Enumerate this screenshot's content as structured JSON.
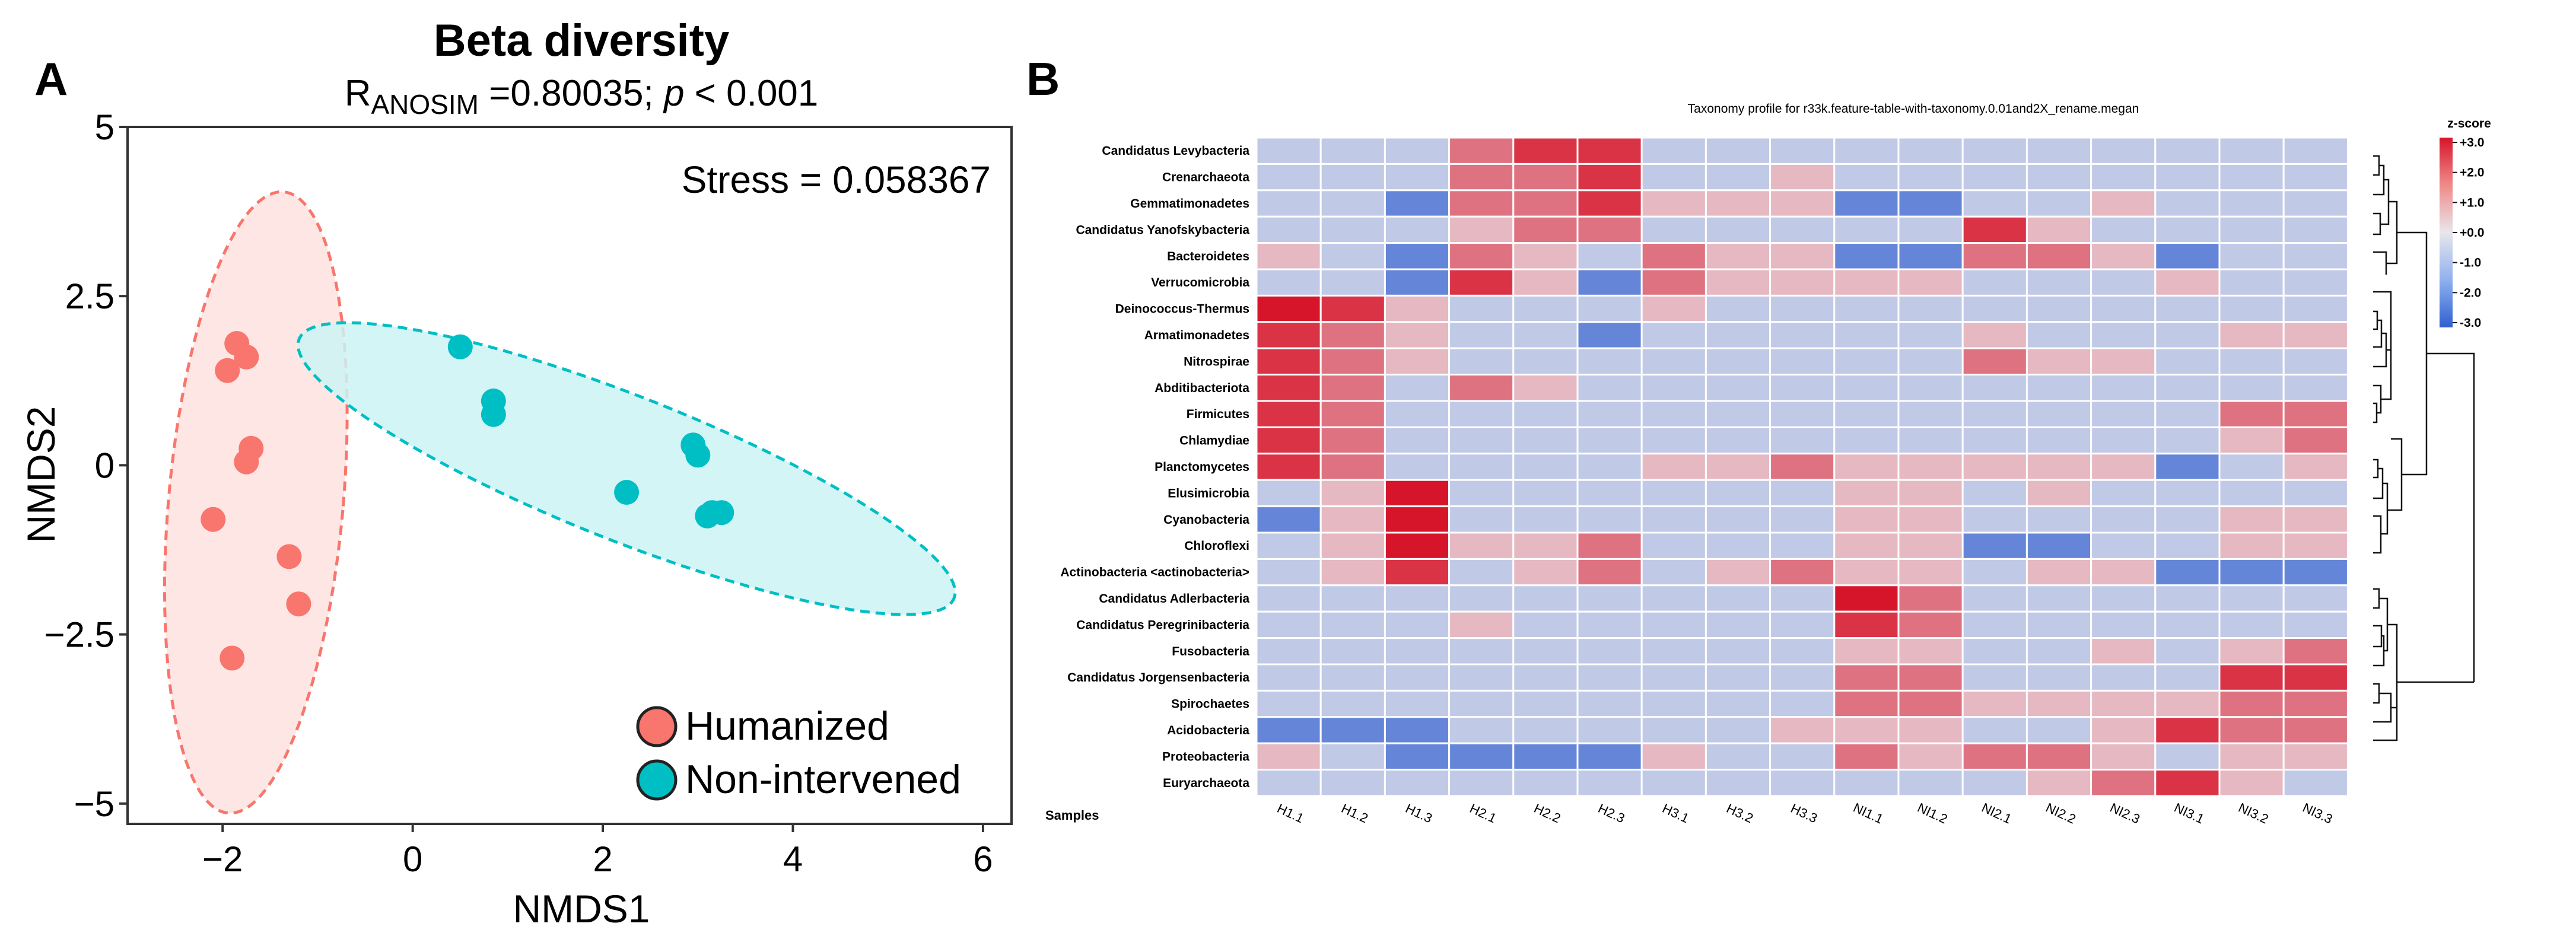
{
  "chart_data": [
    {
      "type": "scatter",
      "panel_label": "A",
      "title": "Beta diversity",
      "subtitle": {
        "r_symbol": "R",
        "r_subscript": "ANOSIM",
        "r_value": " =0.80035; ",
        "p_symbol": "p",
        "p_value": " < 0.001"
      },
      "annotation": "Stress = 0.058367",
      "xlabel": "NMDS1",
      "ylabel": "NMDS2",
      "xlim": [
        -3,
        6.3
      ],
      "ylim": [
        -5.3,
        5
      ],
      "xticks": [
        -2,
        0,
        2,
        4,
        6
      ],
      "xtick_labels": [
        "−2",
        "0",
        "2",
        "4",
        "6"
      ],
      "yticks": [
        5,
        2.5,
        0,
        -2.5,
        -5
      ],
      "ytick_labels": [
        "5",
        "2.5",
        "0",
        "−2.5",
        "−5"
      ],
      "legend_position": "bottom-right",
      "series": [
        {
          "name": "Humanized",
          "color": "#f8766d",
          "ellipse_fill": "#fde3e1",
          "points": [
            [
              -1.85,
              1.8
            ],
            [
              -1.75,
              1.6
            ],
            [
              -1.95,
              1.4
            ],
            [
              -1.7,
              0.25
            ],
            [
              -1.75,
              0.05
            ],
            [
              -2.1,
              -0.8
            ],
            [
              -1.3,
              -1.35
            ],
            [
              -1.2,
              -2.05
            ],
            [
              -1.9,
              -2.85
            ]
          ],
          "ellipse": {
            "cx": -1.65,
            "cy": -0.55,
            "rx": 0.92,
            "ry": 4.6,
            "angle_deg": -3.5
          }
        },
        {
          "name": "Non-intervened",
          "color": "#00bfc4",
          "ellipse_fill": "#cdf3f4",
          "points": [
            [
              0.5,
              1.75
            ],
            [
              0.85,
              0.95
            ],
            [
              0.85,
              0.75
            ],
            [
              2.95,
              0.3
            ],
            [
              3.0,
              0.15
            ],
            [
              2.25,
              -0.4
            ],
            [
              3.15,
              -0.7
            ],
            [
              3.25,
              -0.7
            ],
            [
              3.1,
              -0.75
            ]
          ],
          "ellipse": {
            "cx": 2.25,
            "cy": -0.05,
            "rx": 3.95,
            "ry": 1.0,
            "angle_deg": -30
          }
        }
      ]
    },
    {
      "type": "heatmap",
      "panel_label": "B",
      "title": "Taxonomy profile for r33k.feature-table-with-taxonomy.0.01and2X_rename.megan",
      "xlabel": "Samples",
      "rows": [
        "Candidatus Levybacteria",
        "Crenarchaeota",
        "Gemmatimonadetes",
        "Candidatus Yanofskybacteria",
        "Bacteroidetes",
        "Verrucomicrobia",
        "Deinococcus-Thermus",
        "Armatimonadetes",
        "Nitrospirae",
        "Abditibacteriota",
        "Firmicutes",
        "Chlamydiae",
        "Planctomycetes",
        "Elusimicrobia",
        "Cyanobacteria",
        "Chloroflexi",
        "Actinobacteria <actinobacteria>",
        "Candidatus Adlerbacteria",
        "Candidatus Peregrinibacteria",
        "Fusobacteria",
        "Candidatus Jorgensenbacteria",
        "Spirochaetes",
        "Acidobacteria",
        "Proteobacteria",
        "Euryarchaeota"
      ],
      "columns": [
        "H1.1",
        "H1.2",
        "H1.3",
        "H2.1",
        "H2.2",
        "H2.3",
        "H3.1",
        "H3.2",
        "H3.3",
        "NI1.1",
        "NI1.2",
        "NI2.1",
        "NI2.2",
        "NI2.3",
        "NI3.1",
        "NI3.2",
        "NI3.3"
      ],
      "values": [
        [
          -0.5,
          -0.5,
          -0.5,
          1.5,
          2.5,
          2.5,
          -0.5,
          -0.5,
          -0.5,
          -0.5,
          -0.5,
          -0.5,
          -0.5,
          -0.5,
          -0.5,
          -0.5,
          -0.5
        ],
        [
          -0.5,
          -0.5,
          -0.5,
          1.5,
          1.5,
          2.5,
          -0.5,
          -0.5,
          0.5,
          -0.5,
          -0.5,
          -0.5,
          -0.5,
          -0.5,
          -0.5,
          -0.5,
          -0.5
        ],
        [
          -0.5,
          -0.5,
          -2.0,
          1.5,
          1.5,
          2.5,
          0.5,
          0.5,
          0.5,
          -2.0,
          -2.0,
          -0.5,
          -0.5,
          0.5,
          -0.5,
          -0.5,
          -0.5
        ],
        [
          -0.5,
          -0.5,
          -0.5,
          0.5,
          1.5,
          1.5,
          -0.5,
          -0.5,
          -0.5,
          -0.5,
          -0.5,
          2.5,
          0.5,
          -0.5,
          -0.5,
          -0.5,
          -0.5
        ],
        [
          0.5,
          -0.5,
          -2.0,
          1.5,
          0.5,
          -0.5,
          1.5,
          0.5,
          0.5,
          -2.0,
          -2.0,
          1.5,
          1.5,
          0.5,
          -2.0,
          -0.5,
          -0.5
        ],
        [
          -0.5,
          -0.5,
          -2.0,
          2.5,
          0.5,
          -2.0,
          1.5,
          0.5,
          0.5,
          0.5,
          0.5,
          -0.5,
          -0.5,
          -0.5,
          0.5,
          -0.5,
          -0.5
        ],
        [
          3.0,
          2.5,
          0.5,
          -0.5,
          -0.5,
          -0.5,
          0.5,
          -0.5,
          -0.5,
          -0.5,
          -0.5,
          -0.5,
          -0.5,
          -0.5,
          -0.5,
          -0.5,
          -0.5
        ],
        [
          2.5,
          1.5,
          0.5,
          -0.5,
          -0.5,
          -2.0,
          -0.5,
          -0.5,
          -0.5,
          -0.5,
          -0.5,
          0.5,
          -0.5,
          -0.5,
          -0.5,
          0.5,
          0.5
        ],
        [
          2.5,
          1.5,
          0.5,
          -0.5,
          -0.5,
          -0.5,
          -0.5,
          -0.5,
          -0.5,
          -0.5,
          -0.5,
          1.5,
          0.5,
          0.5,
          -0.5,
          -0.5,
          -0.5
        ],
        [
          2.5,
          1.5,
          -0.5,
          1.5,
          0.5,
          -0.5,
          -0.5,
          -0.5,
          -0.5,
          -0.5,
          -0.5,
          -0.5,
          -0.5,
          -0.5,
          -0.5,
          -0.5,
          -0.5
        ],
        [
          2.5,
          1.5,
          -0.5,
          -0.5,
          -0.5,
          -0.5,
          -0.5,
          -0.5,
          -0.5,
          -0.5,
          -0.5,
          -0.5,
          -0.5,
          -0.5,
          -0.5,
          1.5,
          1.5
        ],
        [
          2.5,
          1.5,
          -0.5,
          -0.5,
          -0.5,
          -0.5,
          -0.5,
          -0.5,
          -0.5,
          -0.5,
          -0.5,
          -0.5,
          -0.5,
          -0.5,
          -0.5,
          0.5,
          1.5
        ],
        [
          2.5,
          1.5,
          -0.5,
          -0.5,
          -0.5,
          -0.5,
          0.5,
          0.5,
          1.5,
          0.5,
          0.5,
          0.5,
          0.5,
          0.5,
          -2.0,
          -0.5,
          0.5
        ],
        [
          -0.5,
          0.5,
          3.0,
          -0.5,
          -0.5,
          -0.5,
          -0.5,
          -0.5,
          -0.5,
          0.5,
          0.5,
          -0.5,
          0.5,
          -0.5,
          -0.5,
          -0.5,
          -0.5
        ],
        [
          -2.0,
          0.5,
          3.0,
          -0.5,
          -0.5,
          -0.5,
          -0.5,
          -0.5,
          -0.5,
          0.5,
          0.5,
          -0.5,
          -0.5,
          -0.5,
          -0.5,
          0.5,
          0.5
        ],
        [
          -0.5,
          0.5,
          3.0,
          0.5,
          0.5,
          1.5,
          -0.5,
          -0.5,
          -0.5,
          0.5,
          0.5,
          -2.0,
          -2.0,
          -0.5,
          -0.5,
          0.5,
          0.5
        ],
        [
          -0.5,
          0.5,
          2.5,
          -0.5,
          0.5,
          1.5,
          -0.5,
          0.5,
          1.5,
          0.5,
          0.5,
          -0.5,
          0.5,
          0.5,
          -2.0,
          -2.0,
          -2.0
        ],
        [
          -0.5,
          -0.5,
          -0.5,
          -0.5,
          -0.5,
          -0.5,
          -0.5,
          -0.5,
          -0.5,
          3.0,
          1.5,
          -0.5,
          -0.5,
          -0.5,
          -0.5,
          -0.5,
          -0.5
        ],
        [
          -0.5,
          -0.5,
          -0.5,
          0.5,
          -0.5,
          -0.5,
          -0.5,
          -0.5,
          -0.5,
          2.5,
          1.5,
          -0.5,
          -0.5,
          -0.5,
          -0.5,
          -0.5,
          -0.5
        ],
        [
          -0.5,
          -0.5,
          -0.5,
          -0.5,
          -0.5,
          -0.5,
          -0.5,
          -0.5,
          -0.5,
          0.5,
          0.5,
          -0.5,
          -0.5,
          0.5,
          -0.5,
          0.5,
          1.5
        ],
        [
          -0.5,
          -0.5,
          -0.5,
          -0.5,
          -0.5,
          -0.5,
          -0.5,
          -0.5,
          -0.5,
          1.5,
          1.5,
          -0.5,
          -0.5,
          -0.5,
          -0.5,
          2.5,
          2.5
        ],
        [
          -0.5,
          -0.5,
          -0.5,
          -0.5,
          -0.5,
          -0.5,
          -0.5,
          -0.5,
          -0.5,
          1.5,
          1.5,
          0.5,
          0.5,
          0.5,
          0.5,
          1.5,
          1.5
        ],
        [
          -2.0,
          -2.0,
          -2.0,
          -0.5,
          -0.5,
          -0.5,
          -0.5,
          -0.5,
          0.5,
          0.5,
          0.5,
          -0.5,
          -0.5,
          0.5,
          2.5,
          1.5,
          1.5
        ],
        [
          0.5,
          -0.5,
          -2.0,
          -2.0,
          -2.0,
          -2.0,
          0.5,
          -0.5,
          -0.5,
          1.5,
          0.5,
          1.5,
          1.5,
          0.5,
          -0.5,
          0.5,
          0.5
        ],
        [
          -0.5,
          -0.5,
          -0.5,
          -0.5,
          -0.5,
          -0.5,
          -0.5,
          -0.5,
          -0.5,
          -0.5,
          -0.5,
          -0.5,
          0.5,
          1.5,
          2.5,
          0.5,
          -0.5
        ]
      ],
      "colorbar": {
        "title": "z-score",
        "range": [
          -3,
          3
        ],
        "tick_labels": [
          "+3.0",
          "+2.0",
          "+1.0",
          "+0.0",
          "-1.0",
          "-2.0",
          "-3.0"
        ]
      },
      "colors": {
        "low": "#2f5fd0",
        "mid": "#e9e6ec",
        "high": "#d7152a",
        "cell_border": "#ffffff"
      }
    }
  ]
}
